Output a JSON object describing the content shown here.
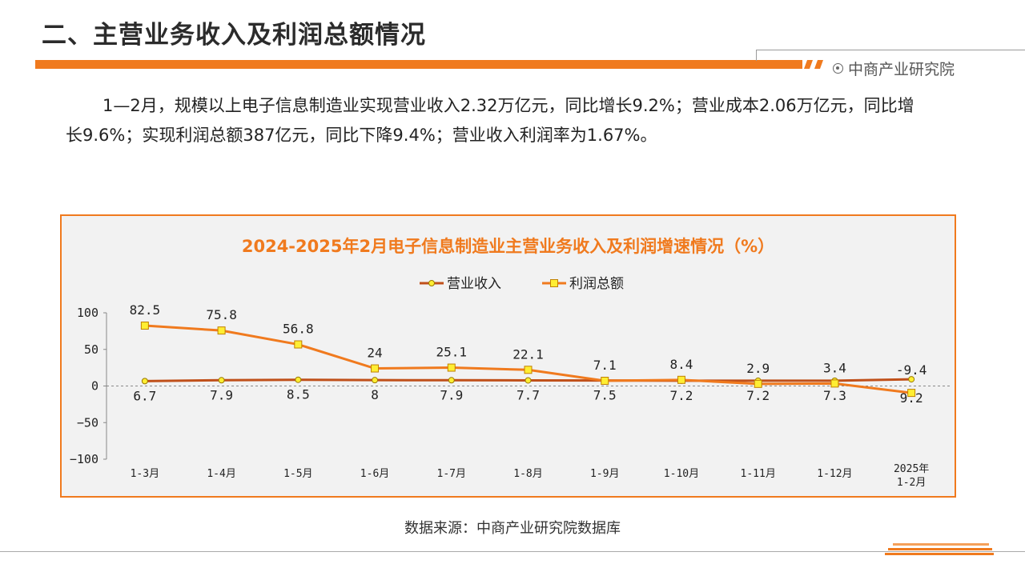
{
  "page": {
    "title": "二、主营业务收入及利润总额情况",
    "brand": "中商产业研究院",
    "summary": "1—2月，规模以上电子信息制造业实现营业收入2.32万亿元，同比增长9.2%；营业成本2.06万亿元，同比增长9.6%；实现利润总额387亿元，同比下降9.4%；营业收入利润率为1.67%。",
    "source": "数据来源：中商产业研究院数据库"
  },
  "colors": {
    "accent": "#f07a1e",
    "revenue_line": "#c0501a",
    "profit_line": "#f07a1e",
    "marker_fill": "#ffee33"
  },
  "chart_data": {
    "type": "line",
    "title": "2024-2025年2月电子信息制造业主营业务收入及利润增速情况（%）",
    "categories": [
      "1-3月",
      "1-4月",
      "1-5月",
      "1-6月",
      "1-7月",
      "1-8月",
      "1-9月",
      "1-10月",
      "1-11月",
      "1-12月",
      "2025年\n1-2月"
    ],
    "series": [
      {
        "name": "营业收入",
        "values": [
          6.7,
          7.9,
          8.5,
          8,
          7.9,
          7.7,
          7.5,
          7.2,
          7.2,
          7.3,
          9.2
        ],
        "labels": [
          "6.7",
          "7.9",
          "8.5",
          "8",
          "7.9",
          "7.7",
          "7.5",
          "7.2",
          "7.2",
          "7.3",
          "9.2"
        ]
      },
      {
        "name": "利润总额",
        "values": [
          82.5,
          75.8,
          56.8,
          24,
          25.1,
          22.1,
          7.1,
          8.4,
          2.9,
          3.4,
          -9.4
        ],
        "labels": [
          "82.5",
          "75.8",
          "56.8",
          "24",
          "25.1",
          "22.1",
          "7.1",
          "8.4",
          "2.9",
          "3.4",
          "-9.4"
        ]
      }
    ],
    "ylim": [
      -100,
      100
    ],
    "yticks": [
      100,
      50,
      0,
      -50,
      -100
    ],
    "legend_position": "top",
    "grid": false
  }
}
